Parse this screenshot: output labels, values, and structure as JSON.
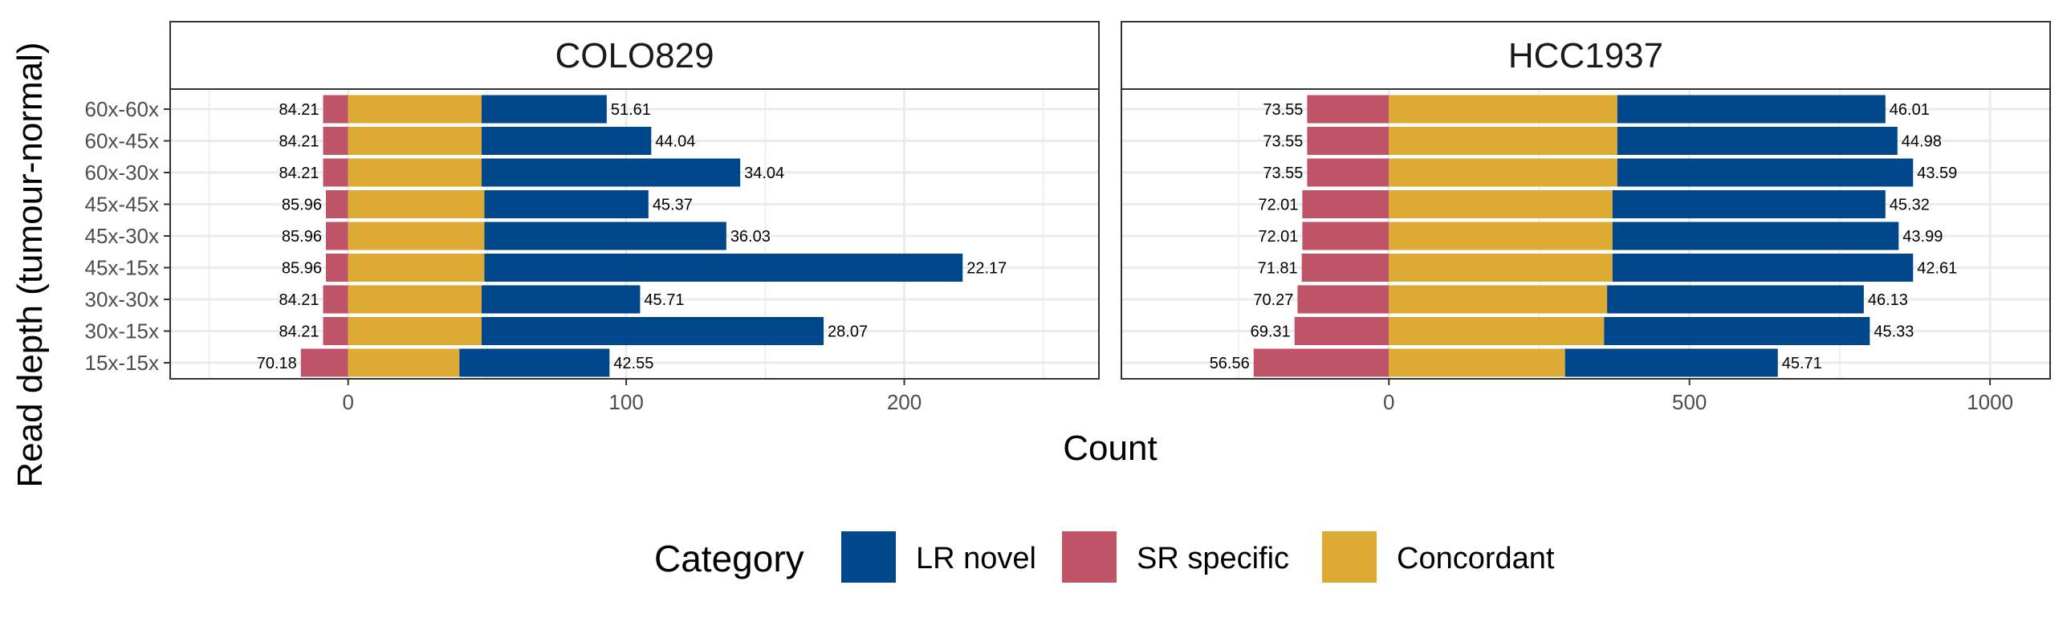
{
  "chart_data": {
    "type": "bar",
    "orientation": "horizontal",
    "stacked": true,
    "ylabel": "Read depth (tumour-normal)",
    "xlabel": "Count",
    "categories": [
      "60x-60x",
      "60x-45x",
      "60x-30x",
      "45x-45x",
      "45x-30x",
      "45x-15x",
      "30x-30x",
      "30x-15x",
      "15x-15x"
    ],
    "legend": {
      "title": "Category",
      "position": "bottom",
      "items": [
        {
          "name": "LR novel",
          "color": "#00468b"
        },
        {
          "name": "SR specific",
          "color": "#bf5468"
        },
        {
          "name": "Concordant",
          "color": "#ddaa33"
        }
      ]
    },
    "grid": true,
    "panels": [
      {
        "title": "COLO829",
        "xlim": [
          -64,
          270
        ],
        "xticks": [
          0,
          100,
          200
        ],
        "series": [
          {
            "name": "SR specific",
            "values": [
              -9,
              -9,
              -9,
              -8,
              -8,
              -8,
              -9,
              -9,
              -17
            ]
          },
          {
            "name": "Concordant",
            "values": [
              48,
              48,
              48,
              49,
              49,
              49,
              48,
              48,
              40
            ]
          },
          {
            "name": "LR novel",
            "values": [
              45,
              61,
              93,
              59,
              87,
              172,
              57,
              123,
              54
            ]
          }
        ],
        "label_values": [
          "84.21",
          "84.21",
          "84.21",
          "85.96",
          "85.96",
          "85.96",
          "84.21",
          "84.21",
          "70.18"
        ],
        "bar_end_labels": [
          "51.61",
          "44.04",
          "34.04",
          "45.37",
          "36.03",
          "22.17",
          "45.71",
          "28.07",
          "42.55"
        ]
      },
      {
        "title": "HCC1937",
        "xlim": [
          -445,
          1100
        ],
        "xticks": [
          0,
          500,
          1000
        ],
        "series": [
          {
            "name": "SR specific",
            "values": [
              -136,
              -136,
              -136,
              -144,
              -144,
              -145,
              -152,
              -157,
              -225
            ]
          },
          {
            "name": "Concordant",
            "values": [
              380,
              380,
              380,
              372,
              372,
              372,
              363,
              358,
              293
            ]
          },
          {
            "name": "LR novel",
            "values": [
              446,
              466,
              492,
              454,
              476,
              500,
              427,
              442,
              354
            ]
          }
        ],
        "label_values": [
          "73.55",
          "73.55",
          "73.55",
          "72.01",
          "72.01",
          "71.81",
          "70.27",
          "69.31",
          "56.56"
        ],
        "bar_end_labels": [
          "46.01",
          "44.98",
          "43.59",
          "45.32",
          "43.99",
          "42.61",
          "46.13",
          "45.33",
          "45.71"
        ]
      }
    ]
  }
}
